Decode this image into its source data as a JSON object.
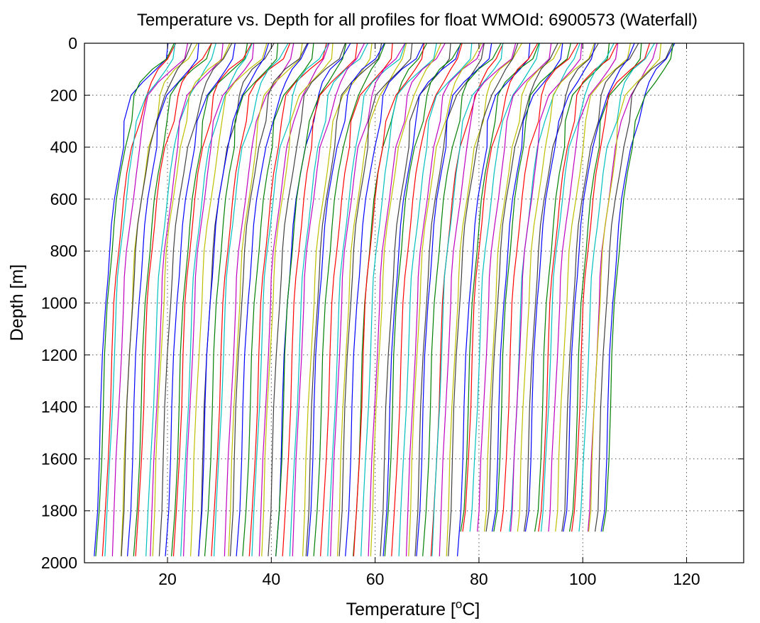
{
  "chart_data": {
    "type": "line",
    "title": "Temperature vs. Depth for all profiles for float WMOId: 6900573 (Waterfall)",
    "xlabel": "Temperature [",
    "xlabel_sup": "o",
    "xlabel_unit": "C]",
    "ylabel": "Depth [m]",
    "xlim": [
      4,
      131
    ],
    "ylim": [
      0,
      2000
    ],
    "y_reversed": true,
    "xticks": [
      20,
      40,
      60,
      80,
      100,
      120
    ],
    "yticks": [
      0,
      200,
      400,
      600,
      800,
      1000,
      1200,
      1400,
      1600,
      1800,
      2000
    ],
    "grid": "dotted",
    "series_count": 100,
    "offset_per_profile": 1,
    "color_cycle": [
      "#0000ff",
      "#008000",
      "#ff0000",
      "#00bfbf",
      "#bf00bf",
      "#bfbf00",
      "#404040"
    ],
    "depth_levels": [
      0,
      60,
      100,
      150,
      200,
      300,
      400,
      500,
      600,
      700,
      800,
      900,
      1000,
      1200,
      1400,
      1600,
      1800,
      1975
    ],
    "base_profile_temps": [
      19.5,
      18.5,
      16.5,
      14.5,
      13.0,
      11.8,
      10.8,
      10.0,
      9.3,
      8.7,
      8.2,
      7.8,
      7.5,
      7.0,
      6.6,
      6.2,
      5.8,
      5.3
    ]
  }
}
